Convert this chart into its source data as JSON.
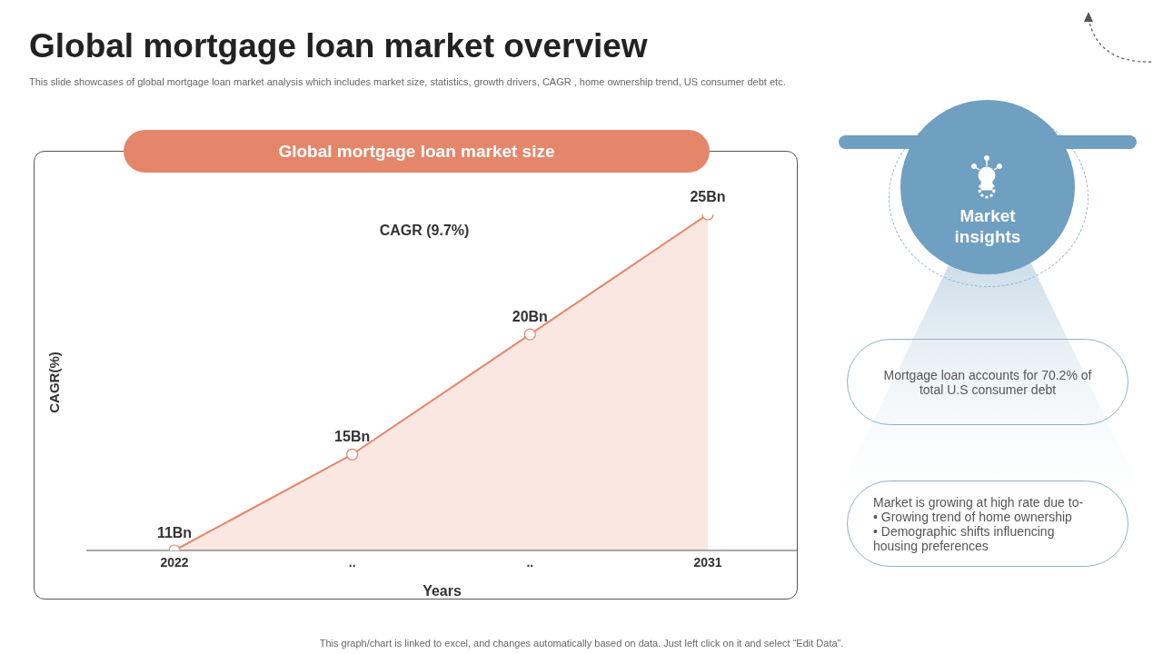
{
  "chart_data": {
    "type": "area",
    "title": "Global mortgage loan market overview",
    "subtitle": "This slide showcases of global mortgage loan market analysis which includes market size, statistics, growth drivers, CAGR , home ownership trend, US consumer debt etc.",
    "xlabel": "Years",
    "ylabel": "CAGR(%)",
    "categories": [
      "2022",
      "..",
      "..",
      "2031"
    ],
    "series": [
      {
        "color": "#e5866a",
        "values": [
          11,
          15,
          20,
          25
        ],
        "value_labels": [
          "11Bn",
          "15Bn",
          "20Bn",
          "25Bn"
        ]
      }
    ],
    "marker": "circle",
    "legend": false,
    "grid": false,
    "annotations": [
      "Global mortgage loan market size",
      "CAGR (9.7%)",
      "Market insights",
      "Mortgage loan accounts for 70.2% of total U.S consumer debt",
      "Market is growing at high rate due to-\n• Growing trend of home ownership\n• Demographic shifts influencing housing preferences",
      "This graph/chart is linked to excel, and changes automatically based on data. Just left click on it and select “Edit Data”."
    ]
  }
}
